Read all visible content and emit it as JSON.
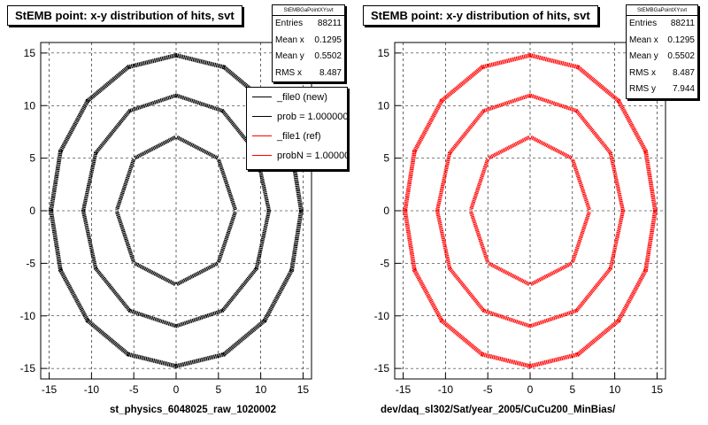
{
  "chart_data": [
    {
      "type": "scatter",
      "title": "StEMB point: x-y distribution of hits, svt",
      "xlabel": "st_physics_6048025_raw_1020002",
      "ylabel": "",
      "xlim": [
        -16,
        16
      ],
      "ylim": [
        -16,
        16
      ],
      "xticks": [
        -15,
        -10,
        -5,
        0,
        5,
        10,
        15
      ],
      "yticks": [
        -15,
        -10,
        -5,
        0,
        5,
        10,
        15
      ],
      "grid": true,
      "color": "#000000",
      "layers": [
        {
          "apothem": 6.5,
          "sides": 8,
          "rotation_deg": 22.5,
          "half_length": 2.6,
          "thickness": 0.45
        },
        {
          "apothem": 10.6,
          "sides": 12,
          "rotation_deg": 15,
          "half_length": 2.9,
          "thickness": 0.45
        },
        {
          "apothem": 14.5,
          "sides": 16,
          "rotation_deg": 11.25,
          "half_length": 3.0,
          "thickness": 0.5
        }
      ],
      "stats": {
        "header": "StEMBGaPointXYsvt",
        "rows": [
          {
            "label": "Entries",
            "value": "88211"
          },
          {
            "label": "Mean x",
            "value": "0.1295"
          },
          {
            "label": "Mean y",
            "value": "0.5502"
          },
          {
            "label": "RMS x",
            "value": "8.487"
          }
        ]
      },
      "legend": {
        "placement": "top-right",
        "entries": [
          {
            "label": "_file0 (new)",
            "color": "#000000"
          },
          {
            "label": "prob = 1.000000",
            "color": "#000000"
          },
          {
            "label": "_file1 (ref)",
            "color": "#ff0000"
          },
          {
            "label": "probN = 1.000000",
            "color": "#ff0000"
          }
        ]
      }
    },
    {
      "type": "scatter",
      "title": "StEMB point: x-y distribution of hits, svt",
      "xlabel": "dev/daq_sl302/Sat/year_2005/CuCu200_MinBias/",
      "ylabel": "",
      "xlim": [
        -16,
        16
      ],
      "ylim": [
        -16,
        16
      ],
      "xticks": [
        -15,
        -10,
        -5,
        0,
        5,
        10,
        15
      ],
      "yticks": [
        -15,
        -10,
        -5,
        0,
        5,
        10,
        15
      ],
      "grid": true,
      "color": "#ff0000",
      "layers": [
        {
          "apothem": 6.5,
          "sides": 8,
          "rotation_deg": 22.5,
          "half_length": 2.6,
          "thickness": 0.45
        },
        {
          "apothem": 10.6,
          "sides": 12,
          "rotation_deg": 15,
          "half_length": 2.9,
          "thickness": 0.45
        },
        {
          "apothem": 14.5,
          "sides": 16,
          "rotation_deg": 11.25,
          "half_length": 3.0,
          "thickness": 0.5
        }
      ],
      "stats": {
        "header": "StEMBGaPointXYsvt",
        "rows": [
          {
            "label": "Entries",
            "value": "88211"
          },
          {
            "label": "Mean x",
            "value": "0.1295"
          },
          {
            "label": "Mean y",
            "value": "0.5502"
          },
          {
            "label": "RMS x",
            "value": "8.487"
          },
          {
            "label": "RMS y",
            "value": "7.944"
          }
        ]
      }
    }
  ]
}
